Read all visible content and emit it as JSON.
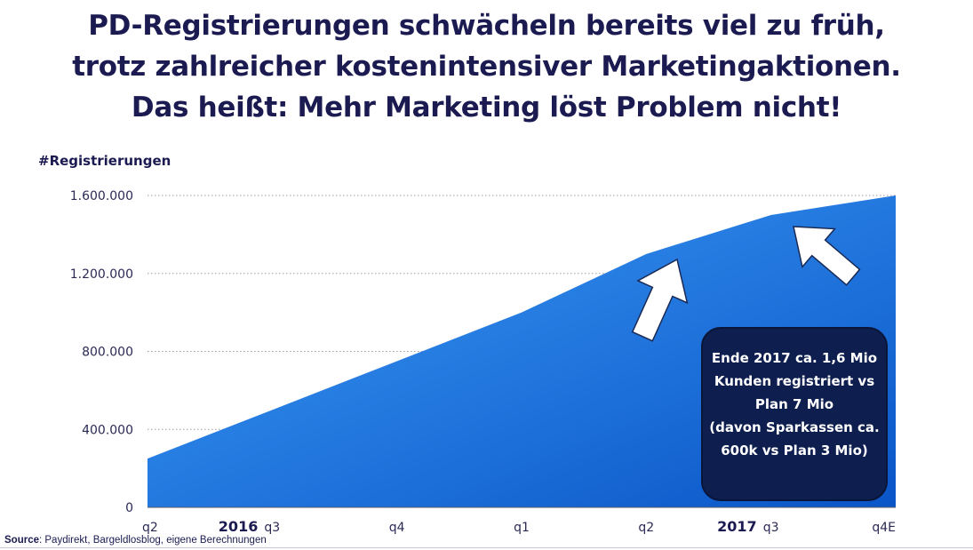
{
  "title_lines": [
    "PD-Registrierungen schwächeln bereits viel zu früh,",
    "trotz zahlreicher kostenintensiver Marketingaktionen.",
    "Das heißt: Mehr Marketing löst Problem nicht!"
  ],
  "callout_lines": [
    "Ende 2017  ca. 1,6 Mio",
    "Kunden registriert vs",
    "Plan 7 Mio",
    "(davon Sparkassen ca.",
    "600k vs Plan 3 Mio)"
  ],
  "source": {
    "label": "Source",
    "text": ": Paydirekt, Bargeldlosblog, eigene Berechnungen"
  },
  "chart_data": {
    "type": "area",
    "ylabel": "#Registrierungen",
    "x": [
      "q2",
      "q3",
      "q4",
      "q1",
      "q2",
      "q3",
      "q4E"
    ],
    "year_labels": [
      {
        "label": "2016",
        "at_index": 1
      },
      {
        "label": "2017",
        "at_index": 5
      }
    ],
    "values": [
      250000,
      500000,
      750000,
      1000000,
      1300000,
      1500000,
      1600000
    ],
    "ylim": [
      0,
      1600000
    ],
    "yticks": [
      0,
      400000,
      800000,
      1200000,
      1600000
    ],
    "ytick_labels": [
      "0",
      "400.000",
      "800.000",
      "1.200.000",
      "1.600.000"
    ],
    "grid": true,
    "color_top": "#3d9cf5",
    "color_bottom": "#0a55c8"
  }
}
